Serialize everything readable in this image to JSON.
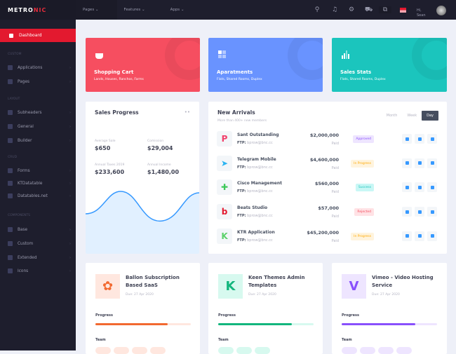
{
  "brand": {
    "part1": "METRO",
    "part2": "NIC"
  },
  "sidebar": {
    "active": "Dashboard",
    "sections": [
      {
        "label": "CUSTOM"
      },
      {
        "label": "LAYOUT"
      },
      {
        "label": "CRUD"
      },
      {
        "label": "COMPONENTS"
      }
    ],
    "items": [
      {
        "label": "Applications",
        "icon": "apps-icon"
      },
      {
        "label": "Pages",
        "icon": "pages-icon"
      },
      {
        "label": "Subheaders",
        "icon": "subheaders-icon"
      },
      {
        "label": "General",
        "icon": "general-icon"
      },
      {
        "label": "Builder",
        "icon": "builder-icon"
      },
      {
        "label": "Forms",
        "icon": "forms-icon"
      },
      {
        "label": "KTDatatable",
        "icon": "table-icon"
      },
      {
        "label": "Datatables.net",
        "icon": "table-icon"
      },
      {
        "label": "Base",
        "icon": "box-icon"
      },
      {
        "label": "Custom",
        "icon": "folder-icon"
      },
      {
        "label": "Extended",
        "icon": "bulb-icon"
      },
      {
        "label": "Icons",
        "icon": "icons-icon"
      }
    ]
  },
  "topbar": {
    "menus": [
      "Pages",
      "Features",
      "Apps"
    ],
    "greeting": "Hi,",
    "user": "Sean"
  },
  "stats": [
    {
      "title": "Shopping Cart",
      "subtitle": "Lands, Houses, Ranchos, Farms",
      "color": "#f64e60"
    },
    {
      "title": "Aparatments",
      "subtitle": "Flats, Shared Rooms, Duplex",
      "color": "#6993ff"
    },
    {
      "title": "Sales Stats",
      "subtitle": "Flats, Shared Rooms, Duplex",
      "color": "#1bc5bd"
    }
  ],
  "sales": {
    "title": "Sales Progress",
    "metrics": [
      {
        "label": "Average Sale",
        "value": "$650"
      },
      {
        "label": "Comission",
        "value": "$29,004"
      },
      {
        "label": "Annual Taxes 2019",
        "value": "$233,600"
      },
      {
        "label": "Annual Income",
        "value": "$1,480,00"
      }
    ]
  },
  "arrivals": {
    "title": "New Arrivals",
    "subtitle": "More than 400+ new members",
    "tabs": [
      "Month",
      "Week",
      "Day"
    ],
    "active_tab": "Day",
    "ftp_label": "FTP:",
    "rows": [
      {
        "name": "Sant Outstanding",
        "ftp": "bprow@bnc.cc",
        "amount": "$2,000,000",
        "paid": "Paid",
        "status": "Approved",
        "logo": "P",
        "logo_color": "#f1416c",
        "bg": "#eee5ff",
        "fg": "#8950fc"
      },
      {
        "name": "Telegram Mobile",
        "ftp": "bprow@bnc.cc",
        "amount": "$4,600,000",
        "paid": "Paid",
        "status": "In Progress",
        "logo": "➤",
        "logo_color": "#2ab3f1",
        "bg": "#fff4de",
        "fg": "#ffa800"
      },
      {
        "name": "Cisco Management",
        "ftp": "bprow@bnc.cc",
        "amount": "$560,000",
        "paid": "Paid",
        "status": "Success",
        "logo": "✚",
        "logo_color": "#3ec85a",
        "bg": "#c9f7f5",
        "fg": "#1bc5bd"
      },
      {
        "name": "Beats Studio",
        "ftp": "bprow@bnc.cc",
        "amount": "$57,000",
        "paid": "Paid",
        "status": "Rejected",
        "logo": "b",
        "logo_color": "#e3192f",
        "bg": "#ffe2e5",
        "fg": "#f64e60"
      },
      {
        "name": "KTR Application",
        "ftp": "bprow@bnc.cc",
        "amount": "$45,200,000",
        "paid": "Paid",
        "status": "In Progress",
        "logo": "K",
        "logo_color": "#5cd16b",
        "bg": "#fff4de",
        "fg": "#ffa800"
      }
    ]
  },
  "projects": [
    {
      "title": "Ballon Subscription Based SaaS",
      "due": "Due: 27 Apr 2020",
      "progress_label": "Progress",
      "team_label": "Team",
      "progress": 76,
      "color": "#f26930",
      "light": "#ffe7df",
      "logo": "✿",
      "team": 4
    },
    {
      "title": "Keen Themes Admin Templates",
      "due": "Due: 27 Apr 2020",
      "progress_label": "Progress",
      "team_label": "Team",
      "progress": 77,
      "color": "#13b67d",
      "light": "#d7f9ef",
      "logo": "K",
      "team": 3
    },
    {
      "title": "Vimeo - Video Hosting Service",
      "due": "Due: 27 Apr 2020",
      "progress_label": "Progress",
      "team_label": "Team",
      "progress": 77,
      "color": "#8950fc",
      "light": "#eee5ff",
      "logo": "V",
      "team": 4
    }
  ]
}
